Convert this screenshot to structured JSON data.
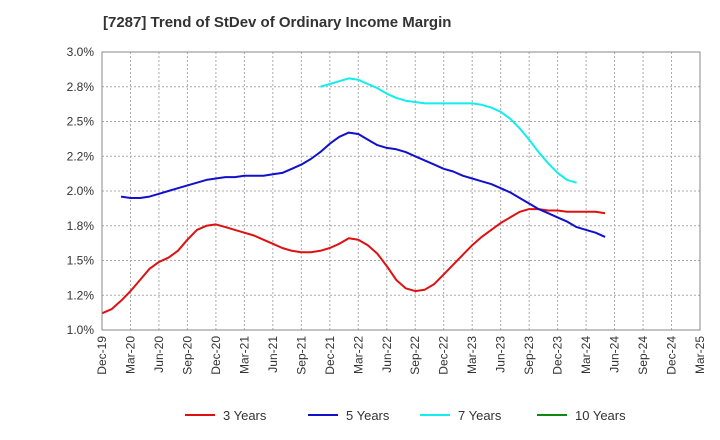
{
  "chart_data": {
    "type": "line",
    "title": "[7287]  Trend of StDev of Ordinary Income Margin",
    "xlabel": "",
    "ylabel": "",
    "ylim": [
      1.0,
      3.0
    ],
    "y_ticks": [
      "3.0%",
      "2.8%",
      "2.5%",
      "2.2%",
      "2.0%",
      "1.8%",
      "1.5%",
      "1.2%",
      "1.0%"
    ],
    "x_ticks": [
      "Dec-19",
      "Mar-20",
      "Jun-20",
      "Sep-20",
      "Dec-20",
      "Mar-21",
      "Jun-21",
      "Sep-21",
      "Dec-21",
      "Mar-22",
      "Jun-22",
      "Sep-22",
      "Dec-22",
      "Mar-23",
      "Jun-23",
      "Sep-23",
      "Dec-23",
      "Mar-24",
      "Jun-24",
      "Sep-24",
      "Dec-24",
      "Mar-25"
    ],
    "grid": true,
    "legend_position": "bottom",
    "series": [
      {
        "name": "3 Years",
        "color": "#dd1111",
        "values": [
          1.12,
          1.15,
          1.21,
          1.28,
          1.36,
          1.44,
          1.49,
          1.52,
          1.57,
          1.65,
          1.72,
          1.75,
          1.76,
          1.74,
          1.72,
          1.7,
          1.68,
          1.65,
          1.62,
          1.59,
          1.57,
          1.56,
          1.56,
          1.57,
          1.59,
          1.62,
          1.66,
          1.65,
          1.61,
          1.55,
          1.46,
          1.36,
          1.3,
          1.28,
          1.29,
          1.33,
          1.4,
          1.47,
          1.54,
          1.61,
          1.67,
          1.72,
          1.77,
          1.81,
          1.85,
          1.87,
          1.87,
          1.86,
          1.86,
          1.85,
          1.85,
          1.85,
          1.85,
          1.84
        ]
      },
      {
        "name": "5 Years",
        "color": "#1111cc",
        "values": [
          null,
          null,
          1.96,
          1.95,
          1.95,
          1.96,
          1.98,
          2.0,
          2.02,
          2.04,
          2.06,
          2.08,
          2.09,
          2.1,
          2.1,
          2.11,
          2.11,
          2.11,
          2.12,
          2.13,
          2.16,
          2.19,
          2.23,
          2.28,
          2.34,
          2.39,
          2.42,
          2.41,
          2.37,
          2.33,
          2.31,
          2.3,
          2.28,
          2.25,
          2.22,
          2.19,
          2.16,
          2.14,
          2.11,
          2.09,
          2.07,
          2.05,
          2.02,
          1.99,
          1.95,
          1.91,
          1.87,
          1.84,
          1.81,
          1.78,
          1.74,
          1.72,
          1.7,
          1.67
        ]
      },
      {
        "name": "7 Years",
        "color": "#11eeee",
        "values": [
          null,
          null,
          null,
          null,
          null,
          null,
          null,
          null,
          null,
          null,
          null,
          null,
          null,
          null,
          null,
          null,
          null,
          null,
          null,
          null,
          null,
          null,
          null,
          2.75,
          2.77,
          2.79,
          2.81,
          2.8,
          2.77,
          2.74,
          2.7,
          2.67,
          2.65,
          2.64,
          2.63,
          2.63,
          2.63,
          2.63,
          2.63,
          2.63,
          2.62,
          2.6,
          2.57,
          2.52,
          2.45,
          2.37,
          2.28,
          2.2,
          2.13,
          2.08,
          2.06
        ]
      },
      {
        "name": "10 Years",
        "color": "#118811",
        "values": []
      }
    ]
  }
}
